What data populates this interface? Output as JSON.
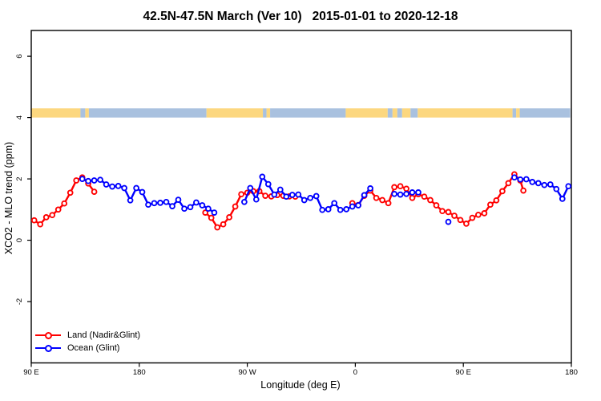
{
  "title": "42.5N-47.5N March (Ver 10)   2015-01-01 to 2020-12-18",
  "legend": {
    "items": [
      {
        "label": "Land (Nadir&Glint)",
        "color": "#ff0000"
      },
      {
        "label": "Ocean (Glint)",
        "color": "#0000ff"
      }
    ]
  },
  "chart_data": {
    "type": "line",
    "title": "42.5N-47.5N March (Ver 10)   2015-01-01 to 2020-12-18",
    "xlabel": "Longitude (deg E)",
    "ylabel": "XCO2 - MLO trend (ppm)",
    "xlim": [
      90,
      540
    ],
    "ylim": [
      -4.0,
      6.84
    ],
    "grid": false,
    "legend_position": "bottom-left",
    "x_ticks": [
      {
        "lon": 90,
        "label": "90 E"
      },
      {
        "lon": 180,
        "label": "180"
      },
      {
        "lon": 270,
        "label": "90 W"
      },
      {
        "lon": 360,
        "label": "0"
      },
      {
        "lon": 450,
        "label": "90 E"
      },
      {
        "lon": 540,
        "label": "180"
      }
    ],
    "y_ticks": [
      {
        "value": -2,
        "label": "-2"
      },
      {
        "value": 0,
        "label": "0"
      },
      {
        "value": 2,
        "label": "2"
      },
      {
        "value": 4,
        "label": "4"
      },
      {
        "value": 6,
        "label": "6"
      }
    ],
    "map_strip": {
      "value_top": 4.3,
      "value_bottom": 4.0,
      "land_color": "#fcd77f",
      "ocean_color": "#a9c1df",
      "segments": [
        [
          90,
          131,
          "land"
        ],
        [
          131,
          135,
          "ocean"
        ],
        [
          135,
          138,
          "land"
        ],
        [
          138,
          236,
          "ocean"
        ],
        [
          236,
          283,
          "land"
        ],
        [
          283,
          286,
          "ocean"
        ],
        [
          286,
          289,
          "land"
        ],
        [
          289,
          352,
          "ocean"
        ],
        [
          352,
          387,
          "land"
        ],
        [
          387,
          391,
          "ocean"
        ],
        [
          391,
          395,
          "land"
        ],
        [
          395,
          399,
          "ocean"
        ],
        [
          399,
          406,
          "land"
        ],
        [
          406,
          412,
          "ocean"
        ],
        [
          412,
          491,
          "land"
        ],
        [
          491,
          494,
          "ocean"
        ],
        [
          494,
          497,
          "land"
        ],
        [
          497,
          539,
          "ocean"
        ]
      ]
    },
    "series": [
      {
        "name": "Land (Nadir&Glint)",
        "color": "#ff0000",
        "marker": "open-circle",
        "segments": [
          [
            [
              92.5,
              0.65
            ],
            [
              97.5,
              0.52
            ],
            [
              102.5,
              0.75
            ],
            [
              107.5,
              0.82
            ],
            [
              112.5,
              1.0
            ],
            [
              117.5,
              1.2
            ],
            [
              122.5,
              1.55
            ],
            [
              127.5,
              1.95
            ],
            [
              132.5,
              2.05
            ],
            [
              137.5,
              1.85
            ],
            [
              142.5,
              1.58
            ]
          ],
          [
            [
              235,
              0.9
            ],
            [
              240,
              0.73
            ],
            [
              245,
              0.42
            ],
            [
              250,
              0.52
            ],
            [
              255,
              0.75
            ],
            [
              260,
              1.1
            ],
            [
              265,
              1.5
            ],
            [
              270,
              1.55
            ],
            [
              275,
              1.6
            ],
            [
              280,
              1.6
            ],
            [
              285,
              1.45
            ],
            [
              290,
              1.43
            ],
            [
              295,
              1.47
            ],
            [
              300,
              1.45
            ],
            [
              305,
              1.43
            ],
            [
              310,
              1.42
            ]
          ],
          [
            [
              357.5,
              1.21
            ],
            [
              362.5,
              1.15
            ],
            [
              367.5,
              1.45
            ],
            [
              372.5,
              1.62
            ],
            [
              377.5,
              1.38
            ],
            [
              382.5,
              1.31
            ],
            [
              387.5,
              1.21
            ],
            [
              392.5,
              1.73
            ],
            [
              397.5,
              1.76
            ],
            [
              402.5,
              1.68
            ],
            [
              407.5,
              1.38
            ],
            [
              412.5,
              1.5
            ],
            [
              417.5,
              1.42
            ],
            [
              422.5,
              1.31
            ],
            [
              427.5,
              1.14
            ],
            [
              432.5,
              0.95
            ],
            [
              437.5,
              0.92
            ],
            [
              442.5,
              0.8
            ],
            [
              447.5,
              0.66
            ],
            [
              452.5,
              0.54
            ],
            [
              457.5,
              0.73
            ],
            [
              462.5,
              0.83
            ],
            [
              467.5,
              0.88
            ],
            [
              472.5,
              1.16
            ],
            [
              477.5,
              1.3
            ],
            [
              482.5,
              1.6
            ],
            [
              487.5,
              1.86
            ],
            [
              492.5,
              2.15
            ],
            [
              497.5,
              1.95
            ],
            [
              500,
              1.62
            ]
          ]
        ]
      },
      {
        "name": "Ocean (Glint)",
        "color": "#0000ff",
        "marker": "open-circle",
        "segments": [
          [
            [
              132.5,
              2.0
            ],
            [
              137.5,
              1.93
            ],
            [
              142.5,
              1.95
            ],
            [
              147.5,
              1.97
            ],
            [
              152.5,
              1.82
            ],
            [
              157.5,
              1.75
            ],
            [
              162.5,
              1.77
            ],
            [
              167.5,
              1.7
            ],
            [
              172.5,
              1.3
            ],
            [
              177.5,
              1.7
            ],
            [
              182.5,
              1.57
            ],
            [
              187.5,
              1.16
            ],
            [
              192.5,
              1.21
            ],
            [
              197.5,
              1.22
            ],
            [
              202.5,
              1.25
            ],
            [
              207.5,
              1.11
            ],
            [
              212.5,
              1.32
            ],
            [
              217.5,
              1.03
            ],
            [
              222.5,
              1.08
            ],
            [
              227.5,
              1.23
            ],
            [
              232.5,
              1.14
            ],
            [
              237.5,
              1.03
            ],
            [
              242.5,
              0.9
            ]
          ],
          [
            [
              267.5,
              1.25
            ],
            [
              272.5,
              1.7
            ],
            [
              277.5,
              1.33
            ],
            [
              282.5,
              2.07
            ],
            [
              287.5,
              1.83
            ],
            [
              292.5,
              1.49
            ],
            [
              297.5,
              1.65
            ],
            [
              302.5,
              1.42
            ],
            [
              307.5,
              1.48
            ],
            [
              312.5,
              1.49
            ],
            [
              317.5,
              1.31
            ],
            [
              322.5,
              1.38
            ],
            [
              327.5,
              1.44
            ],
            [
              332.5,
              0.99
            ],
            [
              337.5,
              1.01
            ],
            [
              342.5,
              1.21
            ],
            [
              347.5,
              0.99
            ],
            [
              352.5,
              1.01
            ],
            [
              357.5,
              1.1
            ],
            [
              362.5,
              1.14
            ],
            [
              367.5,
              1.47
            ],
            [
              372.5,
              1.69
            ]
          ],
          [
            [
              392.5,
              1.51
            ],
            [
              397.5,
              1.49
            ],
            [
              402.5,
              1.51
            ],
            [
              407.5,
              1.56
            ],
            [
              412.5,
              1.56
            ]
          ],
          [
            [
              437.5,
              0.6
            ]
          ],
          [
            [
              492.5,
              2.05
            ],
            [
              497.5,
              1.98
            ],
            [
              502.5,
              1.99
            ],
            [
              507.5,
              1.9
            ],
            [
              512.5,
              1.86
            ],
            [
              517.5,
              1.8
            ],
            [
              522.5,
              1.82
            ],
            [
              527.5,
              1.67
            ],
            [
              532.5,
              1.35
            ],
            [
              537.5,
              1.76
            ]
          ]
        ]
      }
    ]
  }
}
